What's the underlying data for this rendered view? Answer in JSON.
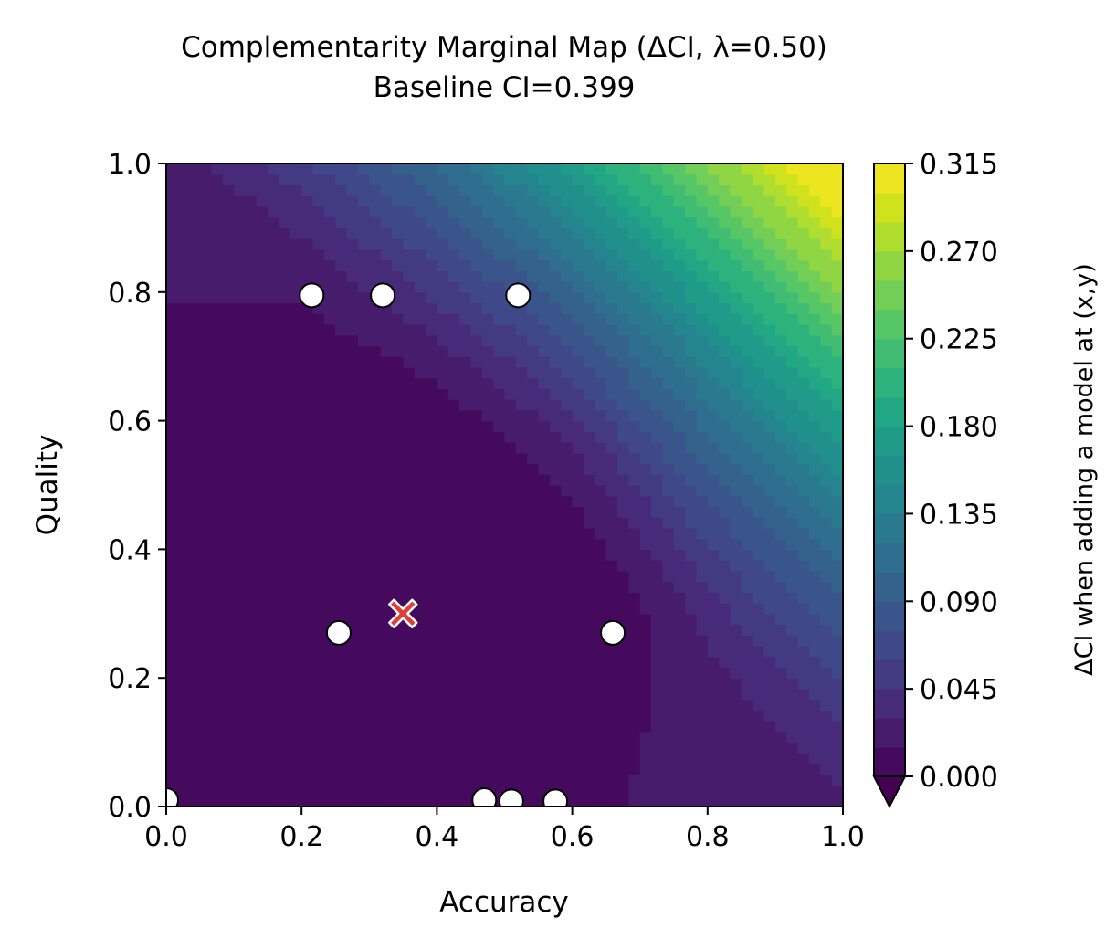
{
  "chart_data": {
    "type": "heatmap",
    "subtype": "filled-contour",
    "title": "Complementarity Marginal Map (ΔCI, λ=0.50)",
    "subtitle": "Baseline CI=0.399",
    "xlabel": "Accuracy",
    "ylabel": "Quality",
    "xlim": [
      0.0,
      1.0
    ],
    "ylim": [
      0.0,
      1.0
    ],
    "xticks": [
      "0.0",
      "0.2",
      "0.4",
      "0.6",
      "0.8",
      "1.0"
    ],
    "yticks": [
      "0.0",
      "0.2",
      "0.4",
      "0.6",
      "0.8",
      "1.0"
    ],
    "colorbar": {
      "label": "ΔCI when adding a model at (x,y)",
      "min": 0.0,
      "max": 0.315,
      "ticks": [
        "0.000",
        "0.045",
        "0.090",
        "0.135",
        "0.180",
        "0.225",
        "0.270",
        "0.315"
      ],
      "colormap": "viridis",
      "levels": 21,
      "extend": "min"
    },
    "field_model": "delta_ci ≈ max(0, 0.315 * ((x + y - 1.0) / 1.0)^1.55) plus low baseline",
    "existing_models": [
      {
        "x": 0.0,
        "y": 0.01
      },
      {
        "x": 0.215,
        "y": 0.795
      },
      {
        "x": 0.32,
        "y": 0.795
      },
      {
        "x": 0.52,
        "y": 0.795
      },
      {
        "x": 0.255,
        "y": 0.27
      },
      {
        "x": 0.66,
        "y": 0.27
      },
      {
        "x": 0.47,
        "y": 0.01
      },
      {
        "x": 0.51,
        "y": 0.008
      },
      {
        "x": 0.575,
        "y": 0.008
      }
    ],
    "best_point": {
      "x": 0.35,
      "y": 0.3,
      "marker": "x",
      "color": "#e23f33"
    },
    "colors": {
      "marker_fill": "#ffffff",
      "marker_edge": "#000000",
      "best_marker": "#e23f33"
    }
  }
}
